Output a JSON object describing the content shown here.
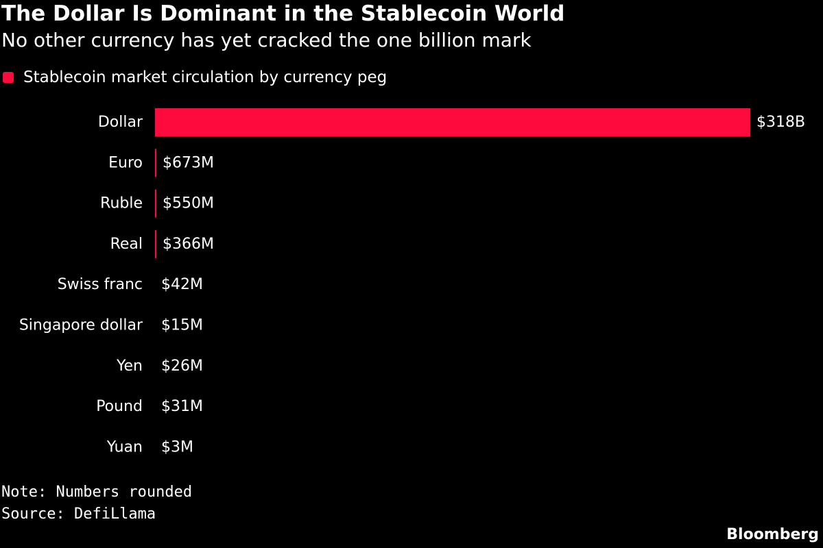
{
  "colors": {
    "background": "#000000",
    "bar": "#ff0a3c",
    "text": "#ffffff"
  },
  "header": {
    "title": "The Dollar Is Dominant in the Stablecoin World",
    "subtitle": "No other currency has yet cracked the one billion mark"
  },
  "legend": {
    "label": "Stablecoin market circulation by currency peg"
  },
  "chart_data": {
    "type": "bar",
    "orientation": "horizontal",
    "title": "The Dollar Is Dominant in the Stablecoin World",
    "subtitle": "No other currency has yet cracked the one billion mark",
    "xlabel": "",
    "ylabel": "",
    "grid": false,
    "legend_position": "top-left",
    "categories": [
      "Dollar",
      "Euro",
      "Ruble",
      "Real",
      "Swiss franc",
      "Singapore dollar",
      "Yen",
      "Pound",
      "Yuan"
    ],
    "series": [
      {
        "name": "Stablecoin market circulation by currency peg",
        "values_musd": [
          318000,
          673,
          550,
          366,
          42,
          15,
          26,
          31,
          3
        ],
        "labels": [
          "$318B",
          "$673M",
          "$550M",
          "$366M",
          "$42M",
          "$15M",
          "$26M",
          "$31M",
          "$3M"
        ]
      }
    ]
  },
  "footer": {
    "note": "Note: Numbers rounded",
    "source": "Source: DefiLlama",
    "brand": "Bloomberg"
  }
}
